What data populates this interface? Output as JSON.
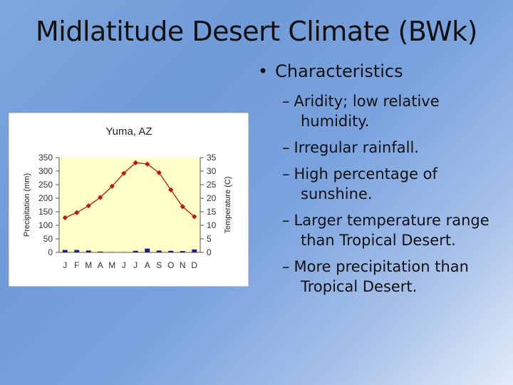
{
  "slide": {
    "title": "Midlatitude Desert Climate (BWk)",
    "bullet": "Characteristics",
    "subpoints": [
      "Aridity; low relative humidity.",
      "Irregular rainfall.",
      "High percentage of sunshine.",
      "Larger temperature range than Tropical Desert.",
      "More precipitation than Tropical Desert."
    ]
  },
  "chart_data": {
    "type": "bar+line",
    "title": "Yuma, AZ",
    "categories": [
      "J",
      "F",
      "M",
      "A",
      "M",
      "J",
      "J",
      "A",
      "S",
      "O",
      "N",
      "D"
    ],
    "y_left": {
      "label": "Precipitation (mm)",
      "ylim": [
        0,
        350
      ],
      "ticks": [
        "0",
        "50",
        "100",
        "150",
        "200",
        "250",
        "300",
        "350"
      ]
    },
    "y_right": {
      "label": "Temperature (C)",
      "ylim": [
        0,
        35
      ],
      "ticks": [
        "0",
        "5",
        "10",
        "15",
        "20",
        "25",
        "30",
        "35"
      ]
    },
    "series": [
      {
        "type": "bar",
        "axis": "left",
        "values": [
          9,
          9,
          7,
          3,
          1,
          1,
          6,
          14,
          7,
          6,
          5,
          11
        ],
        "color": "#1a1aa6"
      },
      {
        "type": "line",
        "axis": "right",
        "values": [
          12.8,
          14.7,
          17.2,
          20.3,
          24.4,
          29.2,
          33.1,
          32.6,
          29.4,
          23.1,
          16.9,
          13.2
        ],
        "color": "#cc1111"
      }
    ],
    "plot_background": "#ffffc8"
  }
}
